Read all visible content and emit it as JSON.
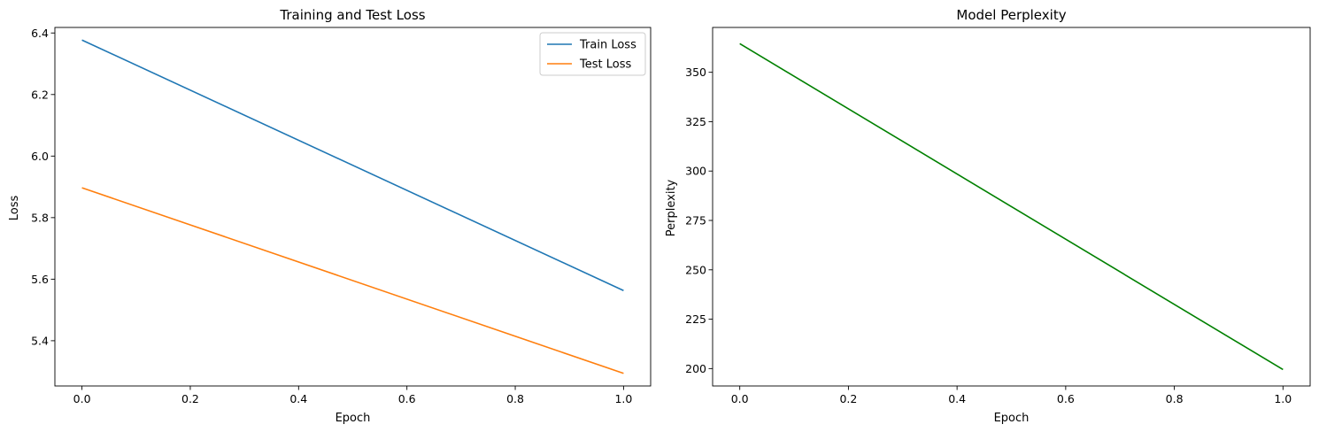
{
  "chart_data": [
    {
      "type": "line",
      "title": "Training and Test Loss",
      "xlabel": "Epoch",
      "ylabel": "Loss",
      "x": [
        0,
        1
      ],
      "xlim": [
        -0.05,
        1.05
      ],
      "ylim": [
        5.253,
        6.418
      ],
      "xticks": [
        0.0,
        0.2,
        0.4,
        0.6,
        0.8,
        1.0
      ],
      "xtick_labels": [
        "0.0",
        "0.2",
        "0.4",
        "0.6",
        "0.8",
        "1.0"
      ],
      "yticks": [
        5.4,
        5.6,
        5.8,
        6.0,
        6.2,
        6.4
      ],
      "ytick_labels": [
        "5.4",
        "5.6",
        "5.8",
        "6.0",
        "6.2",
        "6.4"
      ],
      "grid": false,
      "legend": "top-right",
      "series": [
        {
          "name": "Train Loss",
          "values": [
            6.377,
            5.563
          ],
          "color": "#1f77b4"
        },
        {
          "name": "Test Loss",
          "values": [
            5.897,
            5.294
          ],
          "color": "#ff7f0e"
        }
      ]
    },
    {
      "type": "line",
      "title": "Model Perplexity",
      "xlabel": "Epoch",
      "ylabel": "Perplexity",
      "x": [
        0,
        1
      ],
      "xlim": [
        -0.05,
        1.05
      ],
      "ylim": [
        191.2,
        372.7
      ],
      "xticks": [
        0.0,
        0.2,
        0.4,
        0.6,
        0.8,
        1.0
      ],
      "xtick_labels": [
        "0.0",
        "0.2",
        "0.4",
        "0.6",
        "0.8",
        "1.0"
      ],
      "yticks": [
        200,
        225,
        250,
        275,
        300,
        325,
        350
      ],
      "ytick_labels": [
        "200",
        "225",
        "250",
        "275",
        "300",
        "325",
        "350"
      ],
      "grid": false,
      "legend": "none",
      "series": [
        {
          "values": [
            364.5,
            199.5
          ],
          "color": "#008000"
        }
      ]
    }
  ]
}
